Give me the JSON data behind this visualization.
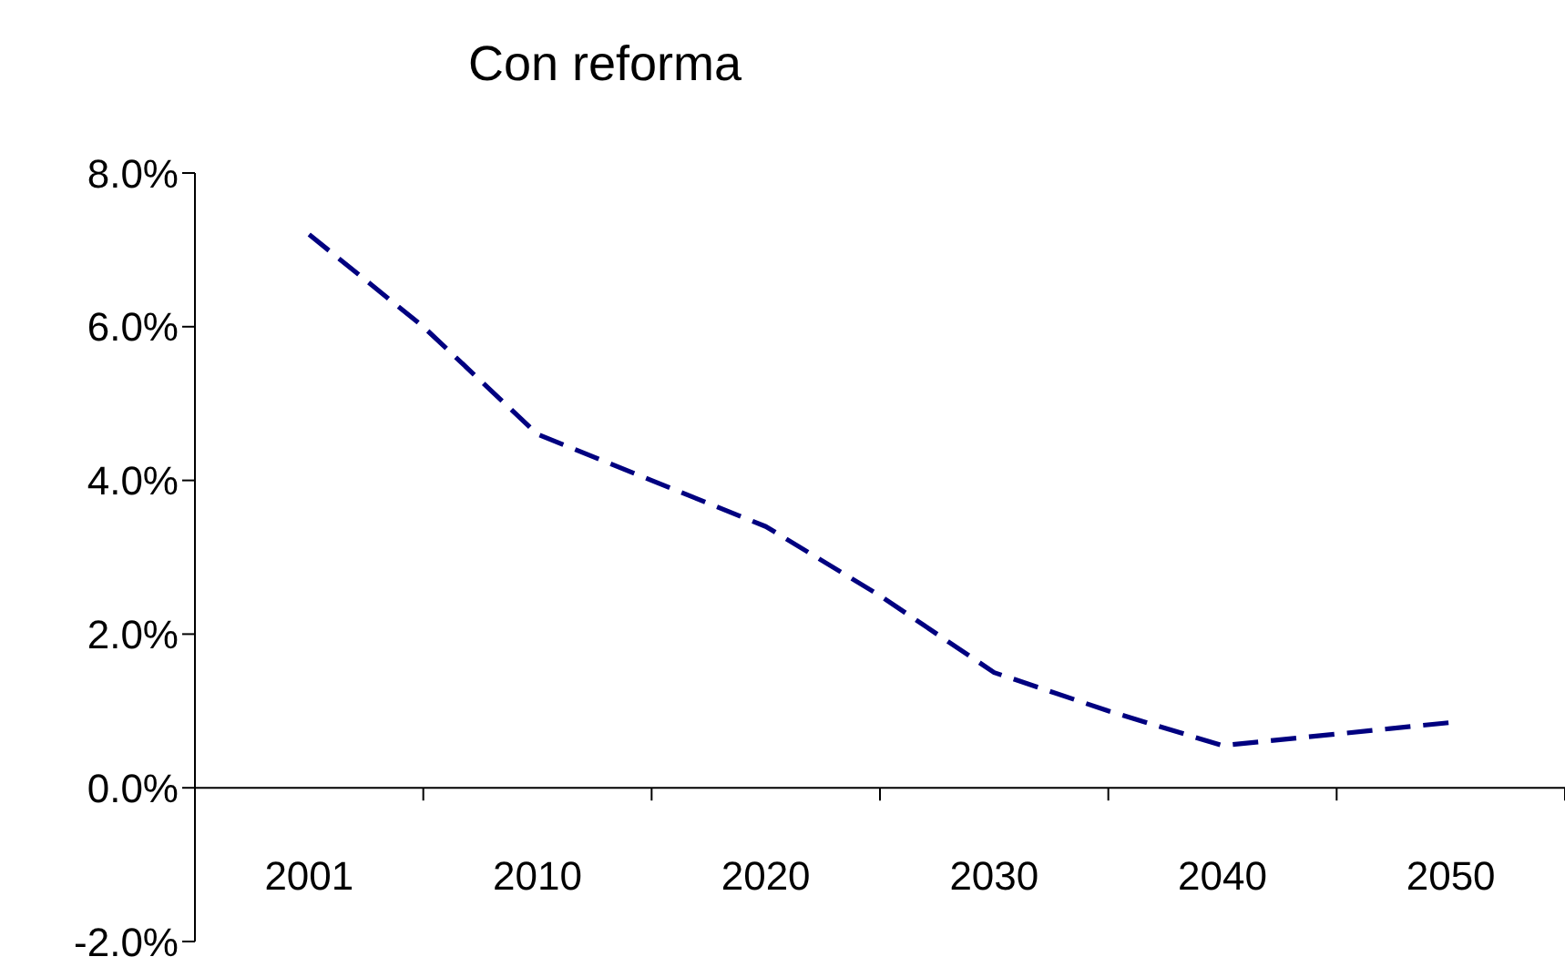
{
  "chart_data": {
    "type": "line",
    "title": "Con reforma",
    "categories": [
      "2001",
      null,
      "2010",
      null,
      "2020",
      null,
      "2030",
      null,
      "2040",
      null,
      "2050"
    ],
    "values": [
      7.2,
      6.0,
      4.6,
      4.0,
      3.4,
      2.5,
      1.5,
      1.0,
      0.55,
      0.7,
      0.85
    ],
    "color": "#000080",
    "line_style": "dashed",
    "ylim": [
      -2,
      8
    ],
    "yticks": [
      {
        "value": -2,
        "label": "-2.0%"
      },
      {
        "value": 0,
        "label": "0.0%"
      },
      {
        "value": 2,
        "label": "2.0%"
      },
      {
        "value": 4,
        "label": "4.0%"
      },
      {
        "value": 6,
        "label": "6.0%"
      },
      {
        "value": 8,
        "label": "8.0%"
      }
    ]
  }
}
